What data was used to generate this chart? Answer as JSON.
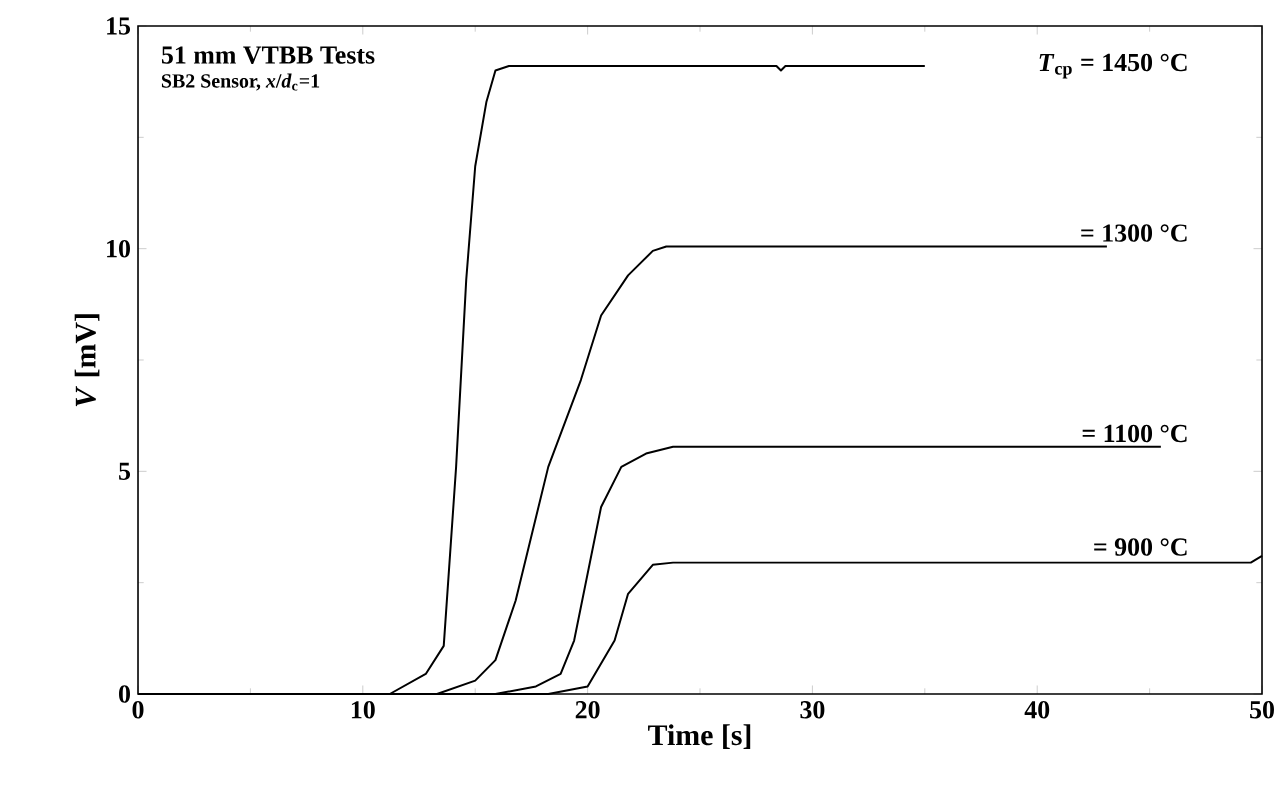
{
  "chart_data": {
    "type": "line",
    "title": "51 mm VTBB Tests",
    "subtitle": "SB2 Sensor, *x*/*d*$_{c}$=1",
    "xlabel": "Time [s]",
    "ylabel": "*V* [mV]",
    "xlim": [
      0,
      50
    ],
    "ylim": [
      0,
      15
    ],
    "xticks": [
      0,
      10,
      20,
      30,
      40,
      50
    ],
    "yticks": [
      0,
      5,
      10,
      15
    ],
    "grid": false,
    "marker": "none",
    "line_style": "solid",
    "series": [
      {
        "color": "#000000",
        "x": [
          0,
          11.2,
          12.8,
          13.6,
          14.15,
          14.6,
          15.0,
          15.5,
          15.9,
          16.5,
          20,
          25,
          28.4,
          28.6,
          28.8,
          35
        ],
        "values": [
          0,
          0,
          0.45,
          1.08,
          5.1,
          9.3,
          11.85,
          13.3,
          14.0,
          14.1,
          14.1,
          14.1,
          14.1,
          14.0,
          14.1,
          14.1
        ]
      },
      {
        "color": "#000000",
        "x": [
          0,
          13.3,
          15.0,
          15.9,
          16.8,
          18.25,
          19.7,
          20.6,
          21.8,
          22.9,
          23.5,
          43.1
        ],
        "values": [
          0,
          0,
          0.3,
          0.76,
          2.1,
          5.1,
          7.05,
          8.5,
          9.4,
          9.95,
          10.05,
          10.05
        ]
      },
      {
        "color": "#000000",
        "x": [
          0,
          15.9,
          17.7,
          18.8,
          19.4,
          20.6,
          21.5,
          22.6,
          23.8,
          45.5
        ],
        "values": [
          0,
          0,
          0.17,
          0.45,
          1.2,
          4.2,
          5.1,
          5.4,
          5.55,
          5.55
        ]
      },
      {
        "color": "#000000",
        "x": [
          0,
          18.25,
          20.0,
          21.2,
          21.8,
          22.9,
          23.8,
          49.5,
          50
        ],
        "values": [
          0,
          0,
          0.17,
          1.2,
          2.25,
          2.9,
          2.95,
          2.95,
          3.1
        ]
      }
    ],
    "annotations": [
      "*T*$_{cp}$ = 1450 °C",
      "= 1300 °C",
      "= 1100 °C",
      "= 900 °C"
    ]
  }
}
